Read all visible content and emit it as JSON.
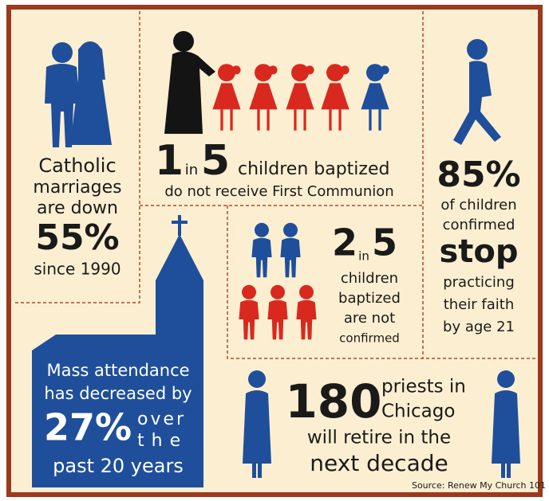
{
  "marriages": {
    "lines": [
      "Catholic",
      "marriages",
      "are down"
    ],
    "stat": "55%",
    "since": "since 1990"
  },
  "communion": {
    "num1": "1",
    "word": "in",
    "num2": "5",
    "line1": "children baptized",
    "line2": "do not receive First Communion"
  },
  "stop": {
    "stat": "85%",
    "lines": [
      "of children",
      "confirmed"
    ],
    "emphasis": "stop",
    "lines_after": [
      "practicing",
      "their faith",
      "by age 21"
    ]
  },
  "not_confirmed": {
    "num1": "2",
    "word": "in",
    "num2": "5",
    "lines": [
      "children",
      "baptized",
      "are not",
      "confirmed"
    ]
  },
  "mass": {
    "lines": [
      "Mass attendance",
      "has decreased by"
    ],
    "stat": "27%",
    "side_lines": [
      "over",
      "the"
    ],
    "last_line": "past 20 years"
  },
  "priests": {
    "stat": "180",
    "side_lines": [
      "priests in",
      "Chicago"
    ],
    "lines": [
      "will retire in the",
      "next decade"
    ]
  },
  "source": "Source: Renew My Church 101"
}
